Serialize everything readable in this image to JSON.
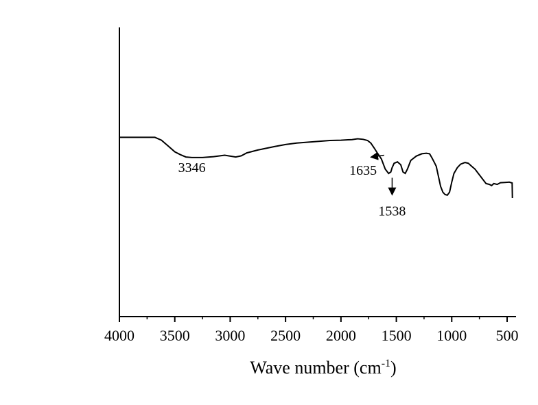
{
  "chart_data": {
    "type": "line",
    "title": "",
    "xlabel": "Wave number (cm",
    "xlabel_sup": "-1",
    "xlabel_close": ")",
    "ylabel": "",
    "xlim": [
      4000,
      450
    ],
    "ylim": [
      0,
      100
    ],
    "x_reversed": true,
    "xticks": [
      4000,
      3500,
      3000,
      2500,
      2000,
      1500,
      1000,
      500
    ],
    "xtick_labels": [
      "4000",
      "3500",
      "3000",
      "2500",
      "2000",
      "1500",
      "1000",
      "500"
    ],
    "grid": false,
    "line_color": "#000000",
    "series": [
      {
        "values": [
          [
            4000,
            62
          ],
          [
            3680,
            62
          ],
          [
            3620,
            61
          ],
          [
            3560,
            59
          ],
          [
            3500,
            57
          ],
          [
            3450,
            56
          ],
          [
            3400,
            55.2
          ],
          [
            3346,
            55
          ],
          [
            3250,
            55
          ],
          [
            3150,
            55.3
          ],
          [
            3050,
            55.8
          ],
          [
            2950,
            55.2
          ],
          [
            2900,
            55.6
          ],
          [
            2850,
            56.6
          ],
          [
            2750,
            57.6
          ],
          [
            2600,
            58.8
          ],
          [
            2500,
            59.5
          ],
          [
            2400,
            60
          ],
          [
            2300,
            60.3
          ],
          [
            2200,
            60.6
          ],
          [
            2100,
            60.9
          ],
          [
            2000,
            61
          ],
          [
            1900,
            61.2
          ],
          [
            1850,
            61.5
          ],
          [
            1800,
            61.3
          ],
          [
            1760,
            60.9
          ],
          [
            1730,
            60
          ],
          [
            1700,
            58.3
          ],
          [
            1670,
            56.5
          ],
          [
            1635,
            54.5
          ],
          [
            1600,
            51
          ],
          [
            1570,
            49.5
          ],
          [
            1550,
            50
          ],
          [
            1538,
            51.5
          ],
          [
            1520,
            53
          ],
          [
            1490,
            53.5
          ],
          [
            1460,
            52.5
          ],
          [
            1440,
            50
          ],
          [
            1420,
            49.5
          ],
          [
            1400,
            51
          ],
          [
            1370,
            54
          ],
          [
            1320,
            55.5
          ],
          [
            1270,
            56.3
          ],
          [
            1230,
            56.5
          ],
          [
            1200,
            56.3
          ],
          [
            1180,
            55
          ],
          [
            1160,
            53.5
          ],
          [
            1140,
            52
          ],
          [
            1120,
            48.5
          ],
          [
            1100,
            45
          ],
          [
            1080,
            43
          ],
          [
            1060,
            42.2
          ],
          [
            1040,
            42
          ],
          [
            1020,
            43
          ],
          [
            1000,
            46.5
          ],
          [
            980,
            49.5
          ],
          [
            950,
            51.5
          ],
          [
            920,
            52.7
          ],
          [
            880,
            53.3
          ],
          [
            850,
            53
          ],
          [
            820,
            52
          ],
          [
            790,
            51
          ],
          [
            760,
            49.5
          ],
          [
            720,
            47.5
          ],
          [
            690,
            46
          ],
          [
            660,
            45.7
          ],
          [
            640,
            45.3
          ],
          [
            620,
            46
          ],
          [
            590,
            45.7
          ],
          [
            560,
            46.3
          ],
          [
            520,
            46.4
          ],
          [
            480,
            46.5
          ],
          [
            455,
            46.2
          ],
          [
            452,
            41
          ]
        ]
      }
    ],
    "annotations": [
      {
        "text": "3346",
        "x": 3346,
        "y": 50,
        "arrow": false
      },
      {
        "text": "1635",
        "x": 1800,
        "y": 49,
        "arrow": true,
        "arrow_from": [
          1610,
          55.8
        ],
        "arrow_to": [
          1720,
          55.2
        ]
      },
      {
        "text": "1538",
        "x": 1538,
        "y": 35,
        "arrow": true,
        "arrow_from": [
          1538,
          48
        ],
        "arrow_to": [
          1538,
          42.5
        ]
      }
    ]
  }
}
